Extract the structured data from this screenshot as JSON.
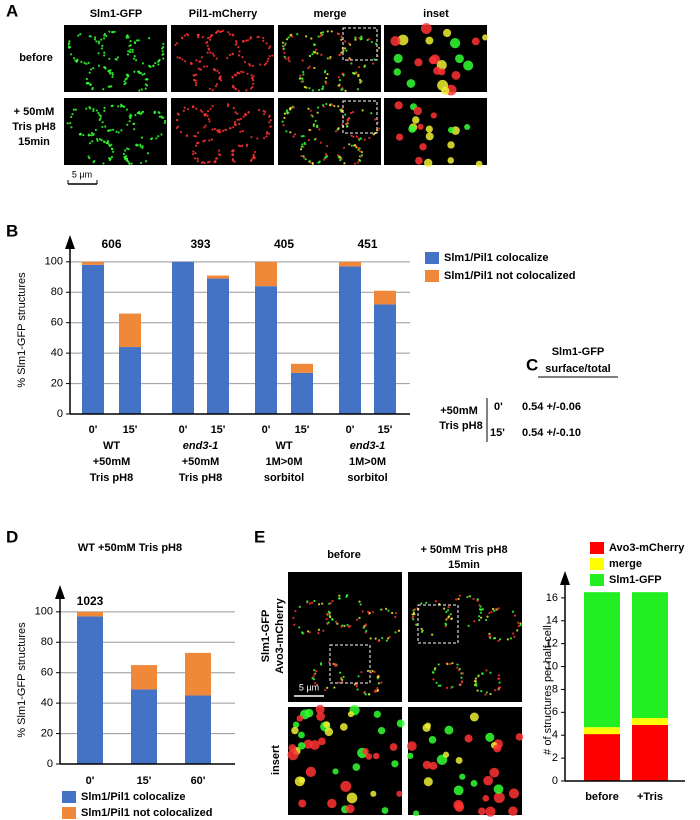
{
  "panel_a": {
    "letter": "A",
    "columns": [
      "Slm1-GFP",
      "Pil1-mCherry",
      "merge",
      "inset"
    ],
    "rows": [
      [
        "before"
      ],
      [
        "+ 50mM",
        "Tris pH8",
        "15min"
      ]
    ],
    "scale_bar": "5 µm"
  },
  "panel_b": {
    "letter": "B"
  },
  "panel_c": {
    "letter": "C",
    "header": [
      "Slm1-GFP",
      "surface/total"
    ],
    "condition": [
      "+50mM",
      "Tris pH8"
    ],
    "rows": [
      {
        "time": "0'",
        "value": "0.54 +/-0.06"
      },
      {
        "time": "15'",
        "value": "0.54 +/-0.10"
      }
    ]
  },
  "panel_d": {
    "letter": "D"
  },
  "panel_e": {
    "letter": "E",
    "columns": [
      [
        "before"
      ],
      [
        "+ 50mM Tris pH8",
        "15min"
      ]
    ],
    "side_label": [
      "Slm1-GFP",
      "Avo3-mCherry"
    ],
    "lower_label": "insert",
    "scale_bar": "5 µm"
  },
  "chart_data": [
    {
      "type": "stacked_bar",
      "y_label": "% Slm1-GFP structures",
      "categories": [
        "0'",
        "15'",
        "0'",
        "15'",
        "0'",
        "15'",
        "0'",
        "15'"
      ],
      "groups": [
        {
          "n": 606,
          "strain": "WT",
          "italic": false,
          "condition": [
            "+50mM",
            "Tris pH8"
          ]
        },
        {
          "n": 393,
          "strain": "end3-1",
          "italic": true,
          "condition": [
            "+50mM",
            "Tris pH8"
          ]
        },
        {
          "n": 405,
          "strain": "WT",
          "italic": false,
          "condition": [
            "1M>0M",
            "sorbitol"
          ]
        },
        {
          "n": 451,
          "strain": "end3-1",
          "italic": true,
          "condition": [
            "1M>0M",
            "sorbitol"
          ]
        }
      ],
      "series": [
        {
          "name": "Slm1/Pil1 colocalize",
          "color": "#4472c4",
          "values": [
            98,
            44,
            100,
            89,
            84,
            27,
            97,
            72
          ]
        },
        {
          "name": "Slm1/Pil1 not colocalized",
          "color": "#f0883a",
          "values": [
            2,
            22,
            0,
            2,
            16,
            6,
            3,
            9
          ]
        }
      ],
      "ylim": [
        0,
        115
      ],
      "yticks": [
        0,
        20,
        40,
        60,
        80,
        100
      ],
      "grid": true
    },
    {
      "type": "stacked_bar",
      "title": "WT +50mM Tris pH8",
      "y_label": "% Slm1-GFP structures",
      "categories": [
        "0'",
        "15'",
        "60'"
      ],
      "n": 1023,
      "series": [
        {
          "name": "Slm1/Pil1 colocalize",
          "color": "#4472c4",
          "values": [
            97,
            49,
            45
          ]
        },
        {
          "name": "Slm1/Pil1 not colocalized",
          "color": "#f0883a",
          "values": [
            3,
            16,
            28
          ]
        }
      ],
      "ylim": [
        0,
        115
      ],
      "yticks": [
        0,
        20,
        40,
        60,
        80,
        100
      ],
      "grid": true
    },
    {
      "type": "stacked_bar",
      "y_label": "# of structures per half-cell",
      "categories": [
        "before",
        "+Tris"
      ],
      "series": [
        {
          "name": "Avo3-mCherry",
          "color": "#ff0000",
          "values": [
            4.1,
            4.9
          ]
        },
        {
          "name": "merge",
          "color": "#ffff00",
          "values": [
            0.6,
            0.6
          ]
        },
        {
          "name": "Slm1-GFP",
          "color": "#22ee22",
          "values": [
            11.8,
            11.0
          ]
        }
      ],
      "ylim": [
        0,
        18
      ],
      "yticks": [
        0,
        2,
        4,
        6,
        8,
        10,
        12,
        14,
        16
      ],
      "grid": false
    }
  ]
}
